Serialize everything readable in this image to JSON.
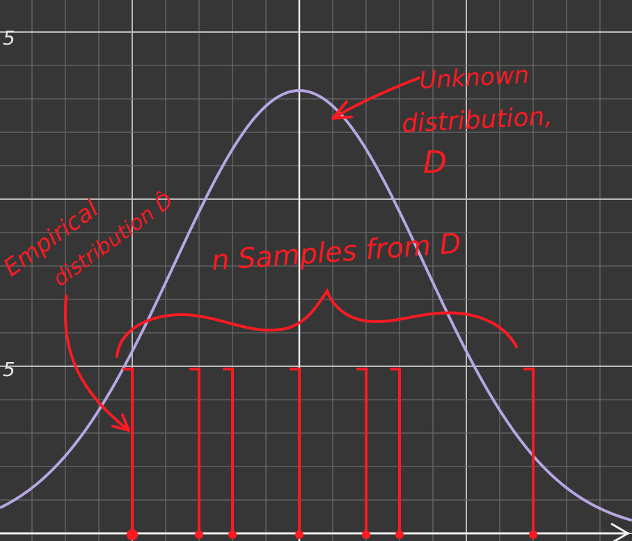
{
  "colors": {
    "background": "#363636",
    "grid_minor": "#6a6a6a",
    "grid_major": "#bcbcbc",
    "axis": "#f0f0f0",
    "curve": "#b7a6e3",
    "ink": "#ff1a22"
  },
  "y_tick_labels": [
    "5",
    "5"
  ],
  "annotations": {
    "unknown": [
      "Unknown",
      "distribution,",
      "D"
    ],
    "empirical": [
      "Empirical",
      "distribution D̂"
    ],
    "sample": "n Samples from D"
  },
  "samples": [
    -5,
    -3,
    -2,
    0,
    2,
    3,
    7
  ]
}
